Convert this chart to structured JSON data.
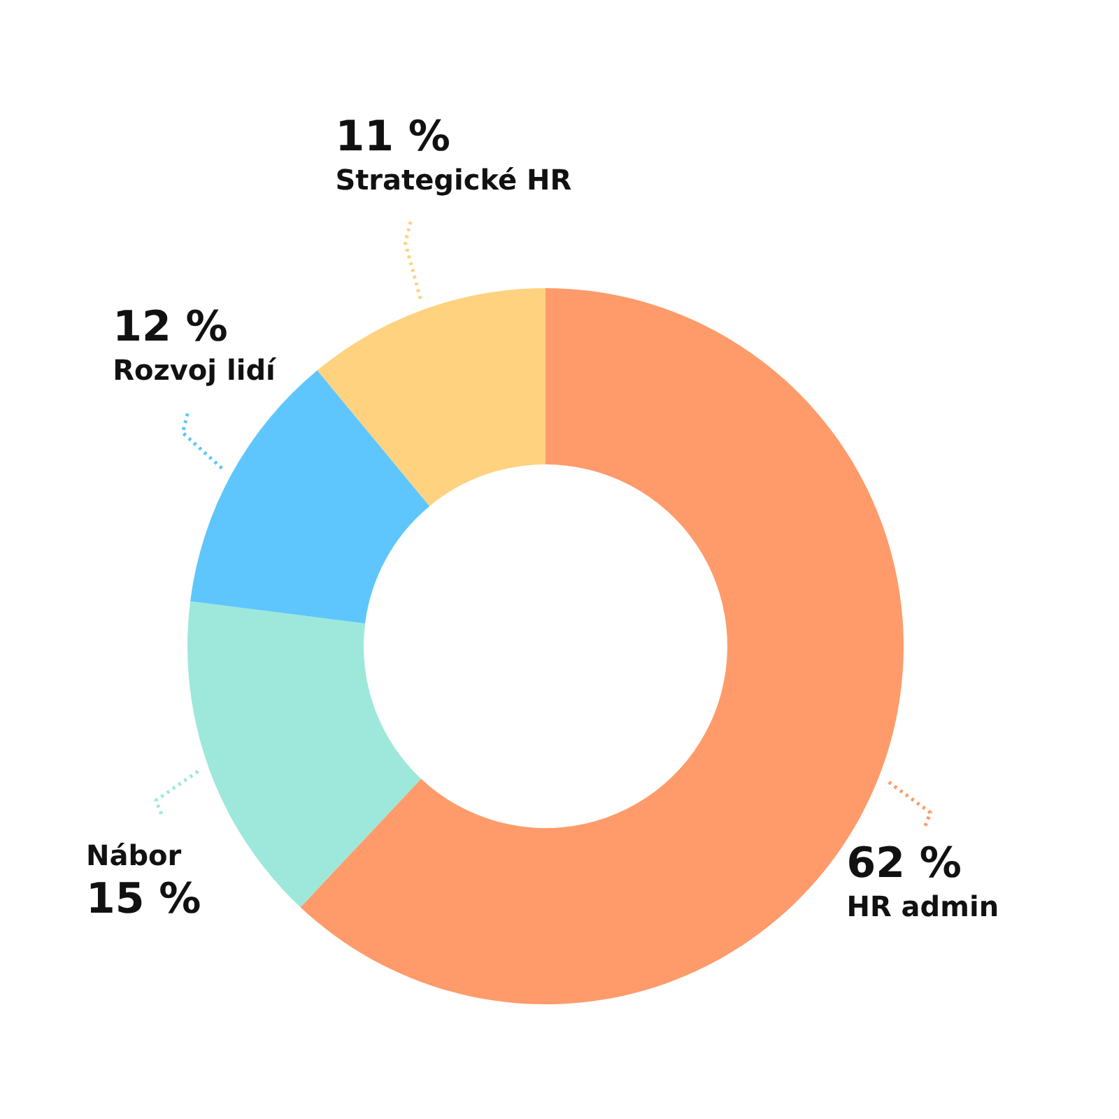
{
  "chart_data": {
    "type": "donut",
    "categories": [
      "HR admin",
      "Nábor",
      "Rozvoj lidí",
      "Strategické HR"
    ],
    "values": [
      62,
      15,
      12,
      11
    ],
    "colors": [
      "#ff9b6a",
      "#9de8da",
      "#5ec6fd",
      "#ffd27f"
    ],
    "value_labels": [
      "62 %",
      "15 %",
      "12 %",
      "11 %"
    ],
    "legend": false
  }
}
